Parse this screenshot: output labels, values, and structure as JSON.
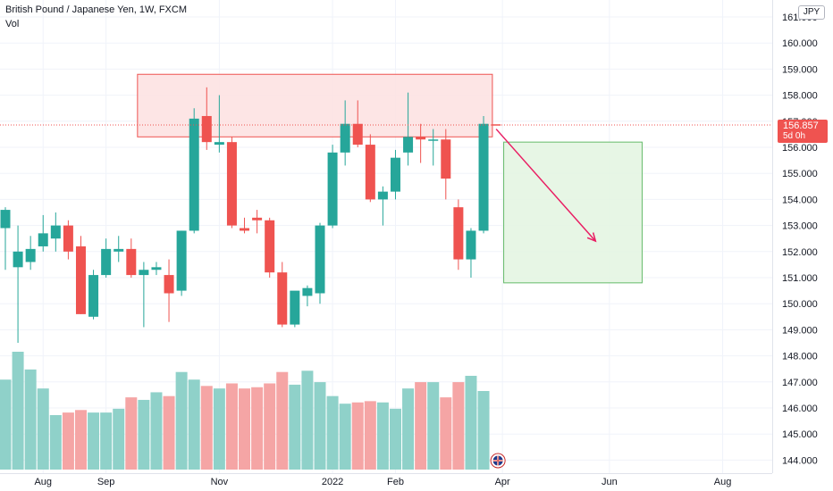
{
  "header": {
    "symbol_title": "British Pound / Japanese Yen, 1W, FXCM",
    "indicator": "Vol",
    "currency": "JPY"
  },
  "price_tag": {
    "price": "156.857",
    "countdown": "5d 0h"
  },
  "colors": {
    "up": "#26a69a",
    "down": "#ef5350",
    "vol_up": "#8fd1c9",
    "vol_down": "#f5a5a5",
    "zone_red_fill": "#fde1e1",
    "zone_red_border": "#ef5350",
    "zone_green_fill": "#e3f4e1",
    "zone_green_border": "#66bb6a",
    "arrow": "#e91e63",
    "grid": "#f0f3fa"
  },
  "chart_data": {
    "type": "candlestick",
    "title": "British Pound / Japanese Yen, 1W, FXCM",
    "ylim": [
      143.8,
      161.5
    ],
    "y_ticks": [
      "144.000",
      "145.000",
      "146.000",
      "147.000",
      "148.000",
      "149.000",
      "150.000",
      "151.000",
      "152.000",
      "153.000",
      "154.000",
      "155.000",
      "156.000",
      "157.000",
      "158.000",
      "159.000",
      "160.000",
      "161.000"
    ],
    "x_ticks": [
      {
        "label": "Aug",
        "week": 3
      },
      {
        "label": "Sep",
        "week": 8
      },
      {
        "label": "Nov",
        "week": 17
      },
      {
        "label": "2022",
        "week": 26
      },
      {
        "label": "Feb",
        "week": 31
      },
      {
        "label": "Apr",
        "week": 39.5
      },
      {
        "label": "Jun",
        "week": 48
      },
      {
        "label": "Aug",
        "week": 57
      }
    ],
    "candles": [
      {
        "o": 152.9,
        "h": 153.7,
        "l": 151.3,
        "c": 153.6
      },
      {
        "o": 151.4,
        "h": 153.0,
        "l": 148.5,
        "c": 152.0
      },
      {
        "o": 151.6,
        "h": 152.6,
        "l": 151.3,
        "c": 152.1
      },
      {
        "o": 152.2,
        "h": 153.4,
        "l": 152.0,
        "c": 152.7
      },
      {
        "o": 152.5,
        "h": 153.5,
        "l": 152.0,
        "c": 153.0
      },
      {
        "o": 153.0,
        "h": 153.2,
        "l": 151.7,
        "c": 152.0
      },
      {
        "o": 152.2,
        "h": 152.6,
        "l": 149.6,
        "c": 149.6
      },
      {
        "o": 149.5,
        "h": 151.3,
        "l": 149.4,
        "c": 151.1
      },
      {
        "o": 151.1,
        "h": 152.5,
        "l": 151.0,
        "c": 152.1
      },
      {
        "o": 152.0,
        "h": 152.6,
        "l": 151.6,
        "c": 152.1
      },
      {
        "o": 152.1,
        "h": 152.5,
        "l": 151.0,
        "c": 151.1
      },
      {
        "o": 151.1,
        "h": 151.6,
        "l": 149.1,
        "c": 151.3
      },
      {
        "o": 151.3,
        "h": 151.6,
        "l": 151.1,
        "c": 151.4
      },
      {
        "o": 151.1,
        "h": 151.7,
        "l": 149.3,
        "c": 150.4
      },
      {
        "o": 150.5,
        "h": 152.8,
        "l": 150.3,
        "c": 152.8
      },
      {
        "o": 152.8,
        "h": 157.5,
        "l": 152.7,
        "c": 157.1
      },
      {
        "o": 157.2,
        "h": 158.3,
        "l": 155.9,
        "c": 156.2
      },
      {
        "o": 156.1,
        "h": 158.0,
        "l": 155.8,
        "c": 156.2
      },
      {
        "o": 156.2,
        "h": 156.4,
        "l": 152.9,
        "c": 153.0
      },
      {
        "o": 152.9,
        "h": 153.3,
        "l": 152.7,
        "c": 152.8
      },
      {
        "o": 153.3,
        "h": 153.6,
        "l": 152.7,
        "c": 153.2
      },
      {
        "o": 153.2,
        "h": 153.3,
        "l": 151.0,
        "c": 151.2
      },
      {
        "o": 151.2,
        "h": 151.6,
        "l": 149.1,
        "c": 149.2
      },
      {
        "o": 149.2,
        "h": 150.4,
        "l": 149.1,
        "c": 150.5
      },
      {
        "o": 150.3,
        "h": 150.7,
        "l": 149.9,
        "c": 150.6
      },
      {
        "o": 150.4,
        "h": 153.1,
        "l": 150.0,
        "c": 153.0
      },
      {
        "o": 153.0,
        "h": 156.1,
        "l": 152.9,
        "c": 155.8
      },
      {
        "o": 155.8,
        "h": 157.8,
        "l": 155.3,
        "c": 156.9
      },
      {
        "o": 156.9,
        "h": 157.8,
        "l": 156.0,
        "c": 156.1
      },
      {
        "o": 156.1,
        "h": 156.5,
        "l": 153.9,
        "c": 154.0
      },
      {
        "o": 154.0,
        "h": 154.5,
        "l": 153.0,
        "c": 154.3
      },
      {
        "o": 154.3,
        "h": 155.9,
        "l": 154.0,
        "c": 155.6
      },
      {
        "o": 155.8,
        "h": 158.1,
        "l": 155.3,
        "c": 156.4
      },
      {
        "o": 156.4,
        "h": 156.9,
        "l": 155.4,
        "c": 156.3
      },
      {
        "o": 156.3,
        "h": 156.7,
        "l": 155.3,
        "c": 156.3
      },
      {
        "o": 156.3,
        "h": 156.7,
        "l": 154.0,
        "c": 154.8
      },
      {
        "o": 153.7,
        "h": 154.0,
        "l": 151.3,
        "c": 151.7
      },
      {
        "o": 151.7,
        "h": 152.9,
        "l": 151.0,
        "c": 152.8
      },
      {
        "o": 152.8,
        "h": 157.2,
        "l": 152.7,
        "c": 156.9
      }
    ],
    "volume": [
      71,
      93,
      79,
      64,
      43,
      45,
      47,
      45,
      45,
      48,
      57,
      55,
      61,
      58,
      77,
      71,
      66,
      64,
      68,
      64,
      65,
      68,
      77,
      67,
      78,
      69,
      58,
      52,
      53,
      54,
      53,
      48,
      64,
      69,
      69,
      57,
      69,
      74,
      62
    ],
    "forming_candle": {
      "week": 39,
      "price": 156.857
    },
    "zones": [
      {
        "type": "resistance",
        "x0": 10.5,
        "x1": 38.7,
        "y0": 156.4,
        "y1": 158.8
      },
      {
        "type": "target",
        "x0": 39.6,
        "x1": 50.6,
        "y0": 150.8,
        "y1": 156.2
      }
    ],
    "arrow": {
      "from_week": 39.0,
      "from_price": 156.7,
      "to_week": 46.9,
      "to_price": 152.4
    },
    "last_price_line": 156.857
  }
}
